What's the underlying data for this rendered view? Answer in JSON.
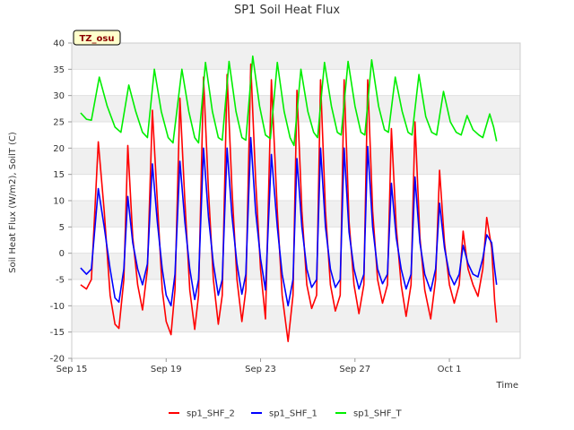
{
  "chart_data": {
    "type": "line",
    "title": "SP1 Soil Heat Flux",
    "xlabel": "Time",
    "ylabel": "Soil Heat Flux (W/m2), SoilT (C)",
    "site_badge": "TZ_osu",
    "ylim": [
      -20,
      40
    ],
    "yticks": [
      -20,
      -15,
      -10,
      -5,
      0,
      5,
      10,
      15,
      20,
      25,
      30,
      35,
      40
    ],
    "xlim": [
      "2023-09-15",
      "2023-10-04"
    ],
    "xticks": [
      {
        "date": "2023-09-15",
        "label": "Sep 15"
      },
      {
        "date": "2023-09-19",
        "label": "Sep 19"
      },
      {
        "date": "2023-09-23",
        "label": "Sep 23"
      },
      {
        "date": "2023-09-27",
        "label": "Sep 27"
      },
      {
        "date": "2023-10-01",
        "label": "Oct 1"
      }
    ],
    "grid": true,
    "legend_position": "bottom",
    "series": [
      {
        "name": "sp1_SHF_2",
        "color": "#ff0000",
        "points": [
          [
            "2023-09-15T09:00",
            -6.0
          ],
          [
            "2023-09-15T15:00",
            -6.8
          ],
          [
            "2023-09-15T20:00",
            -5.0
          ],
          [
            "2023-09-16T03:00",
            21.2
          ],
          [
            "2023-09-16T09:00",
            8.0
          ],
          [
            "2023-09-16T15:00",
            -8.0
          ],
          [
            "2023-09-16T20:00",
            -13.5
          ],
          [
            "2023-09-17T00:00",
            -14.3
          ],
          [
            "2023-09-17T05:00",
            -5.0
          ],
          [
            "2023-09-17T09:00",
            20.5
          ],
          [
            "2023-09-17T14:00",
            3.0
          ],
          [
            "2023-09-17T19:00",
            -6.0
          ],
          [
            "2023-09-18T00:00",
            -10.8
          ],
          [
            "2023-09-18T05:00",
            -3.0
          ],
          [
            "2023-09-18T10:00",
            27.2
          ],
          [
            "2023-09-18T15:00",
            10.0
          ],
          [
            "2023-09-18T20:00",
            -7.0
          ],
          [
            "2023-09-19T00:00",
            -13.0
          ],
          [
            "2023-09-19T05:00",
            -15.5
          ],
          [
            "2023-09-19T09:00",
            -7.0
          ],
          [
            "2023-09-19T14:00",
            29.5
          ],
          [
            "2023-09-19T19:00",
            10.0
          ],
          [
            "2023-09-20T00:00",
            -7.0
          ],
          [
            "2023-09-20T05:00",
            -14.5
          ],
          [
            "2023-09-20T09:00",
            -8.0
          ],
          [
            "2023-09-20T14:00",
            33.5
          ],
          [
            "2023-09-20T19:00",
            12.0
          ],
          [
            "2023-09-21T00:00",
            -5.0
          ],
          [
            "2023-09-21T05:00",
            -13.5
          ],
          [
            "2023-09-21T09:00",
            -8.0
          ],
          [
            "2023-09-21T14:00",
            34.0
          ],
          [
            "2023-09-21T19:00",
            12.0
          ],
          [
            "2023-09-22T00:00",
            -5.0
          ],
          [
            "2023-09-22T05:00",
            -13.0
          ],
          [
            "2023-09-22T09:00",
            -7.0
          ],
          [
            "2023-09-22T14:00",
            36.0
          ],
          [
            "2023-09-22T19:00",
            14.0
          ],
          [
            "2023-09-23T00:00",
            -3.0
          ],
          [
            "2023-09-23T05:00",
            -12.5
          ],
          [
            "2023-09-23T11:00",
            33.0
          ],
          [
            "2023-09-23T17:00",
            8.0
          ],
          [
            "2023-09-23T22:00",
            -8.0
          ],
          [
            "2023-09-24T04:00",
            -16.8
          ],
          [
            "2023-09-24T09:00",
            -8.0
          ],
          [
            "2023-09-24T13:00",
            31.0
          ],
          [
            "2023-09-24T18:00",
            8.0
          ],
          [
            "2023-09-24T23:00",
            -6.0
          ],
          [
            "2023-09-25T04:00",
            -10.5
          ],
          [
            "2023-09-25T09:00",
            -8.0
          ],
          [
            "2023-09-25T13:00",
            33.0
          ],
          [
            "2023-09-25T18:00",
            8.0
          ],
          [
            "2023-09-25T23:00",
            -6.0
          ],
          [
            "2023-09-26T04:00",
            -11.0
          ],
          [
            "2023-09-26T09:00",
            -8.0
          ],
          [
            "2023-09-26T13:00",
            33.0
          ],
          [
            "2023-09-26T18:00",
            6.0
          ],
          [
            "2023-09-26T23:00",
            -6.0
          ],
          [
            "2023-09-27T04:00",
            -11.5
          ],
          [
            "2023-09-27T09:00",
            -6.0
          ],
          [
            "2023-09-27T13:00",
            33.0
          ],
          [
            "2023-09-27T18:00",
            8.0
          ],
          [
            "2023-09-27T23:00",
            -5.0
          ],
          [
            "2023-09-28T04:00",
            -9.5
          ],
          [
            "2023-09-28T09:00",
            -6.0
          ],
          [
            "2023-09-28T13:00",
            23.7
          ],
          [
            "2023-09-28T18:00",
            5.0
          ],
          [
            "2023-09-28T23:00",
            -6.0
          ],
          [
            "2023-09-29T04:00",
            -12.0
          ],
          [
            "2023-09-29T09:00",
            -6.0
          ],
          [
            "2023-09-29T13:00",
            25.0
          ],
          [
            "2023-09-29T18:00",
            3.0
          ],
          [
            "2023-09-29T23:00",
            -7.0
          ],
          [
            "2023-09-30T05:00",
            -12.5
          ],
          [
            "2023-09-30T10:00",
            -5.0
          ],
          [
            "2023-09-30T14:00",
            15.8
          ],
          [
            "2023-09-30T19:00",
            2.0
          ],
          [
            "2023-10-01T00:00",
            -6.0
          ],
          [
            "2023-10-01T05:00",
            -9.5
          ],
          [
            "2023-10-01T10:00",
            -6.0
          ],
          [
            "2023-10-01T14:00",
            4.2
          ],
          [
            "2023-10-01T19:00",
            -3.0
          ],
          [
            "2023-10-02T00:00",
            -6.0
          ],
          [
            "2023-10-02T05:00",
            -8.2
          ],
          [
            "2023-10-02T10:00",
            -3.0
          ],
          [
            "2023-10-02T14:00",
            6.8
          ],
          [
            "2023-10-02T19:00",
            1.0
          ],
          [
            "2023-10-02T22:00",
            -9.0
          ],
          [
            "2023-10-03T00:00",
            -13.2
          ]
        ]
      },
      {
        "name": "sp1_SHF_1",
        "color": "#0000ff",
        "points": [
          [
            "2023-09-15T09:00",
            -2.8
          ],
          [
            "2023-09-15T15:00",
            -4.0
          ],
          [
            "2023-09-15T20:00",
            -3.0
          ],
          [
            "2023-09-16T03:00",
            12.3
          ],
          [
            "2023-09-16T09:00",
            5.0
          ],
          [
            "2023-09-16T15:00",
            -3.0
          ],
          [
            "2023-09-16T20:00",
            -8.5
          ],
          [
            "2023-09-17T00:00",
            -9.3
          ],
          [
            "2023-09-17T05:00",
            -3.0
          ],
          [
            "2023-09-17T09:00",
            10.8
          ],
          [
            "2023-09-17T14:00",
            2.0
          ],
          [
            "2023-09-17T19:00",
            -3.0
          ],
          [
            "2023-09-18T00:00",
            -6.0
          ],
          [
            "2023-09-18T05:00",
            -2.0
          ],
          [
            "2023-09-18T10:00",
            17.0
          ],
          [
            "2023-09-18T15:00",
            6.0
          ],
          [
            "2023-09-18T20:00",
            -3.0
          ],
          [
            "2023-09-19T00:00",
            -8.0
          ],
          [
            "2023-09-19T05:00",
            -10.0
          ],
          [
            "2023-09-19T09:00",
            -4.0
          ],
          [
            "2023-09-19T14:00",
            17.5
          ],
          [
            "2023-09-19T19:00",
            6.0
          ],
          [
            "2023-09-20T00:00",
            -3.0
          ],
          [
            "2023-09-20T05:00",
            -8.8
          ],
          [
            "2023-09-20T09:00",
            -5.0
          ],
          [
            "2023-09-20T14:00",
            20.0
          ],
          [
            "2023-09-20T19:00",
            7.0
          ],
          [
            "2023-09-21T00:00",
            -2.0
          ],
          [
            "2023-09-21T05:00",
            -8.0
          ],
          [
            "2023-09-21T09:00",
            -5.0
          ],
          [
            "2023-09-21T14:00",
            20.0
          ],
          [
            "2023-09-21T19:00",
            7.0
          ],
          [
            "2023-09-22T00:00",
            -2.0
          ],
          [
            "2023-09-22T05:00",
            -7.8
          ],
          [
            "2023-09-22T09:00",
            -4.0
          ],
          [
            "2023-09-22T14:00",
            22.0
          ],
          [
            "2023-09-22T19:00",
            8.0
          ],
          [
            "2023-09-23T00:00",
            -1.0
          ],
          [
            "2023-09-23T05:00",
            -7.0
          ],
          [
            "2023-09-23T11:00",
            18.8
          ],
          [
            "2023-09-23T17:00",
            5.0
          ],
          [
            "2023-09-23T22:00",
            -4.0
          ],
          [
            "2023-09-24T04:00",
            -10.0
          ],
          [
            "2023-09-24T09:00",
            -5.0
          ],
          [
            "2023-09-24T13:00",
            18.0
          ],
          [
            "2023-09-24T18:00",
            5.0
          ],
          [
            "2023-09-24T23:00",
            -3.0
          ],
          [
            "2023-09-25T04:00",
            -6.5
          ],
          [
            "2023-09-25T09:00",
            -5.0
          ],
          [
            "2023-09-25T13:00",
            20.0
          ],
          [
            "2023-09-25T18:00",
            5.0
          ],
          [
            "2023-09-25T23:00",
            -3.0
          ],
          [
            "2023-09-26T04:00",
            -6.5
          ],
          [
            "2023-09-26T09:00",
            -5.0
          ],
          [
            "2023-09-26T13:00",
            20.0
          ],
          [
            "2023-09-26T18:00",
            4.0
          ],
          [
            "2023-09-26T23:00",
            -3.0
          ],
          [
            "2023-09-27T04:00",
            -6.8
          ],
          [
            "2023-09-27T09:00",
            -4.0
          ],
          [
            "2023-09-27T13:00",
            20.3
          ],
          [
            "2023-09-27T18:00",
            5.0
          ],
          [
            "2023-09-27T23:00",
            -3.0
          ],
          [
            "2023-09-28T04:00",
            -5.8
          ],
          [
            "2023-09-28T09:00",
            -4.0
          ],
          [
            "2023-09-28T13:00",
            13.3
          ],
          [
            "2023-09-28T18:00",
            3.0
          ],
          [
            "2023-09-28T23:00",
            -3.0
          ],
          [
            "2023-09-29T04:00",
            -6.8
          ],
          [
            "2023-09-29T09:00",
            -4.0
          ],
          [
            "2023-09-29T13:00",
            14.5
          ],
          [
            "2023-09-29T18:00",
            2.0
          ],
          [
            "2023-09-29T23:00",
            -4.0
          ],
          [
            "2023-09-30T05:00",
            -7.2
          ],
          [
            "2023-09-30T10:00",
            -3.0
          ],
          [
            "2023-09-30T14:00",
            9.5
          ],
          [
            "2023-09-30T19:00",
            1.0
          ],
          [
            "2023-10-01T00:00",
            -4.0
          ],
          [
            "2023-10-01T05:00",
            -6.0
          ],
          [
            "2023-10-01T10:00",
            -4.0
          ],
          [
            "2023-10-01T14:00",
            1.5
          ],
          [
            "2023-10-01T19:00",
            -2.0
          ],
          [
            "2023-10-02T00:00",
            -4.0
          ],
          [
            "2023-10-02T05:00",
            -4.5
          ],
          [
            "2023-10-02T10:00",
            -1.0
          ],
          [
            "2023-10-02T14:00",
            3.5
          ],
          [
            "2023-10-02T19:00",
            2.0
          ],
          [
            "2023-10-02T22:00",
            -3.0
          ],
          [
            "2023-10-03T00:00",
            -6.0
          ]
        ]
      },
      {
        "name": "sp1_SHF_T",
        "color": "#00ee00",
        "points": [
          [
            "2023-09-15T09:00",
            26.7
          ],
          [
            "2023-09-15T15:00",
            25.5
          ],
          [
            "2023-09-15T20:00",
            25.3
          ],
          [
            "2023-09-16T04:00",
            33.5
          ],
          [
            "2023-09-16T12:00",
            28.0
          ],
          [
            "2023-09-16T20:00",
            24.0
          ],
          [
            "2023-09-17T02:00",
            23.0
          ],
          [
            "2023-09-17T10:00",
            32.0
          ],
          [
            "2023-09-17T17:00",
            27.0
          ],
          [
            "2023-09-18T00:00",
            23.0
          ],
          [
            "2023-09-18T05:00",
            22.0
          ],
          [
            "2023-09-18T12:00",
            35.0
          ],
          [
            "2023-09-18T19:00",
            27.0
          ],
          [
            "2023-09-19T02:00",
            22.0
          ],
          [
            "2023-09-19T07:00",
            21.0
          ],
          [
            "2023-09-19T16:00",
            35.0
          ],
          [
            "2023-09-19T23:00",
            27.0
          ],
          [
            "2023-09-20T05:00",
            22.0
          ],
          [
            "2023-09-20T09:00",
            21.0
          ],
          [
            "2023-09-20T16:00",
            36.3
          ],
          [
            "2023-09-20T23:00",
            27.0
          ],
          [
            "2023-09-21T05:00",
            22.0
          ],
          [
            "2023-09-21T09:00",
            21.5
          ],
          [
            "2023-09-21T16:00",
            36.5
          ],
          [
            "2023-09-21T23:00",
            27.0
          ],
          [
            "2023-09-22T05:00",
            22.0
          ],
          [
            "2023-09-22T09:00",
            21.5
          ],
          [
            "2023-09-22T16:00",
            37.5
          ],
          [
            "2023-09-22T23:00",
            28.0
          ],
          [
            "2023-09-23T05:00",
            22.5
          ],
          [
            "2023-09-23T10:00",
            21.8
          ],
          [
            "2023-09-23T17:00",
            36.3
          ],
          [
            "2023-09-24T00:00",
            27.0
          ],
          [
            "2023-09-24T06:00",
            22.0
          ],
          [
            "2023-09-24T10:00",
            20.5
          ],
          [
            "2023-09-24T17:00",
            35.0
          ],
          [
            "2023-09-25T00:00",
            27.0
          ],
          [
            "2023-09-25T06:00",
            23.0
          ],
          [
            "2023-09-25T10:00",
            22.0
          ],
          [
            "2023-09-25T17:00",
            36.3
          ],
          [
            "2023-09-26T00:00",
            28.0
          ],
          [
            "2023-09-26T06:00",
            23.0
          ],
          [
            "2023-09-26T10:00",
            22.5
          ],
          [
            "2023-09-26T17:00",
            36.5
          ],
          [
            "2023-09-27T00:00",
            28.0
          ],
          [
            "2023-09-27T06:00",
            23.0
          ],
          [
            "2023-09-27T10:00",
            22.5
          ],
          [
            "2023-09-27T17:00",
            36.8
          ],
          [
            "2023-09-28T00:00",
            28.0
          ],
          [
            "2023-09-28T06:00",
            23.5
          ],
          [
            "2023-09-28T10:00",
            23.0
          ],
          [
            "2023-09-28T17:00",
            33.5
          ],
          [
            "2023-09-29T00:00",
            27.0
          ],
          [
            "2023-09-29T06:00",
            23.0
          ],
          [
            "2023-09-29T10:00",
            22.5
          ],
          [
            "2023-09-29T17:00",
            34.0
          ],
          [
            "2023-09-30T00:00",
            26.0
          ],
          [
            "2023-09-30T06:00",
            23.0
          ],
          [
            "2023-09-30T11:00",
            22.5
          ],
          [
            "2023-09-30T18:00",
            30.8
          ],
          [
            "2023-10-01T01:00",
            25.0
          ],
          [
            "2023-10-01T07:00",
            23.0
          ],
          [
            "2023-10-01T12:00",
            22.5
          ],
          [
            "2023-10-01T18:00",
            26.2
          ],
          [
            "2023-10-02T00:00",
            23.5
          ],
          [
            "2023-10-02T06:00",
            22.5
          ],
          [
            "2023-10-02T10:00",
            22.0
          ],
          [
            "2023-10-02T17:00",
            26.5
          ],
          [
            "2023-10-02T21:00",
            24.0
          ],
          [
            "2023-10-03T00:00",
            21.3
          ]
        ]
      }
    ]
  }
}
